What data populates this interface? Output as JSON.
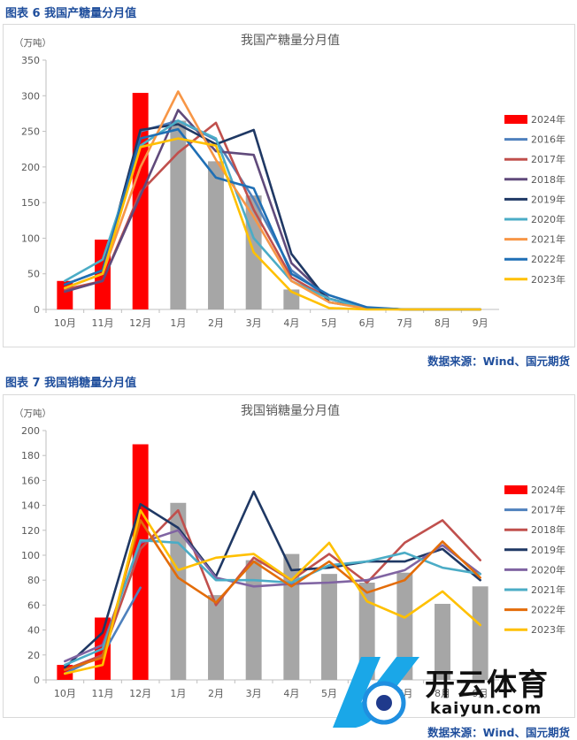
{
  "figures": [
    {
      "heading": "图表 6  我国产糖量分月值",
      "source": "数据来源：Wind、国元期货",
      "chart_data": {
        "type": "bar+line",
        "title": "我国产糖量分月值",
        "unit_label": "（万吨）",
        "categories": [
          "10月",
          "11月",
          "12月",
          "1月",
          "2月",
          "3月",
          "4月",
          "5月",
          "6月",
          "7月",
          "8月",
          "9月"
        ],
        "ylim": [
          0,
          350
        ],
        "yticks": [
          0,
          50,
          100,
          150,
          200,
          250,
          300,
          350
        ],
        "ytick_labels": [
          "0",
          "50",
          "100",
          "150",
          "200",
          "250",
          "300",
          "350"
        ],
        "legend_position": "right",
        "bar_series": [
          {
            "name": "2024年",
            "color": "#ff0000",
            "values": [
              40,
              98,
              304,
              null,
              null,
              null,
              null,
              null,
              null,
              null,
              null,
              null
            ]
          },
          {
            "name": "",
            "color": "#a6a6a6",
            "values": [
              null,
              null,
              null,
              265,
              208,
              160,
              28,
              null,
              null,
              null,
              null,
              null
            ]
          }
        ],
        "series": [
          {
            "name": "2016年",
            "color": "#4f81bd",
            "values": [
              30,
              50,
              250,
              265,
              238,
              155,
              55,
              15,
              2,
              0,
              0,
              0
            ]
          },
          {
            "name": "2017年",
            "color": "#c0504d",
            "values": [
              28,
              40,
              165,
              220,
              262,
              140,
              45,
              15,
              2,
              0,
              0,
              0
            ]
          },
          {
            "name": "2018年",
            "color": "#604a7b",
            "values": [
              25,
              40,
              160,
              280,
              222,
              217,
              65,
              15,
              2,
              0,
              0,
              0
            ]
          },
          {
            "name": "2019年",
            "color": "#1f3864",
            "values": [
              35,
              55,
              252,
              260,
              232,
              252,
              78,
              10,
              2,
              0,
              0,
              0
            ]
          },
          {
            "name": "2020年",
            "color": "#4bacc6",
            "values": [
              40,
              70,
              230,
              265,
              240,
              100,
              40,
              15,
              2,
              0,
              0,
              0
            ]
          },
          {
            "name": "2021年",
            "color": "#f79646",
            "values": [
              30,
              50,
              200,
              306,
              210,
              130,
              40,
              10,
              1,
              0,
              0,
              0
            ]
          },
          {
            "name": "2022年",
            "color": "#1f6fb5",
            "values": [
              35,
              55,
              240,
              253,
              185,
              170,
              50,
              20,
              3,
              0,
              0,
              0
            ]
          },
          {
            "name": "2023年",
            "color": "#ffc000",
            "values": [
              30,
              50,
              228,
              240,
              230,
              80,
              25,
              2,
              0,
              0,
              0,
              0
            ]
          }
        ]
      }
    },
    {
      "heading": "图表 7  我国销糖量分月值",
      "source": "数据来源：Wind、国元期货",
      "chart_data": {
        "type": "bar+line",
        "title": "我国销糖量分月值",
        "unit_label": "（万吨）",
        "categories": [
          "10月",
          "11月",
          "12月",
          "1月",
          "2月",
          "3月",
          "4月",
          "5月",
          "6月",
          "7月",
          "8月",
          "9月"
        ],
        "ylim": [
          0,
          200
        ],
        "yticks": [
          0,
          20,
          40,
          60,
          80,
          100,
          120,
          140,
          160,
          180,
          200
        ],
        "ytick_labels": [
          "0",
          "20",
          "40",
          "60",
          "80",
          "100",
          "120",
          "140",
          "160",
          "180",
          "200"
        ],
        "legend_position": "right",
        "bar_series": [
          {
            "name": "2024年",
            "color": "#ff0000",
            "values": [
              12,
              50,
              189,
              null,
              null,
              null,
              null,
              null,
              null,
              null,
              null,
              null
            ]
          },
          {
            "name": "",
            "color": "#a6a6a6",
            "values": [
              null,
              null,
              null,
              142,
              68,
              96,
              101,
              85,
              78,
              86,
              61,
              75
            ]
          }
        ],
        "series": [
          {
            "name": "2017年",
            "color": "#4f81bd",
            "values": [
              5,
              20,
              74,
              null,
              null,
              null,
              null,
              null,
              null,
              null,
              null,
              null
            ]
          },
          {
            "name": "2018年",
            "color": "#c0504d",
            "values": [
              8,
              20,
              105,
              136,
              60,
              98,
              80,
              101,
              78,
              110,
              128,
              96
            ]
          },
          {
            "name": "2019年",
            "color": "#1f3864",
            "values": [
              10,
              38,
              141,
              122,
              83,
              151,
              88,
              90,
              95,
              95,
              105,
              80
            ]
          },
          {
            "name": "2020年",
            "color": "#8064a2",
            "values": [
              15,
              28,
              110,
              120,
              82,
              75,
              77,
              78,
              80,
              88,
              108,
              85
            ]
          },
          {
            "name": "2021年",
            "color": "#4bacc6",
            "values": [
              12,
              25,
              112,
              110,
              80,
              80,
              78,
              92,
              95,
              102,
              90,
              85
            ]
          },
          {
            "name": "2022年",
            "color": "#e36c09",
            "values": [
              8,
              18,
              128,
              82,
              62,
              95,
              75,
              95,
              70,
              80,
              111,
              82
            ]
          },
          {
            "name": "2023年",
            "color": "#ffc000",
            "values": [
              5,
              12,
              136,
              88,
              98,
              101,
              80,
              110,
              63,
              50,
              71,
              44
            ]
          }
        ]
      }
    }
  ],
  "watermark": {
    "text": "开云体育",
    "url": "kaiyun.com"
  }
}
